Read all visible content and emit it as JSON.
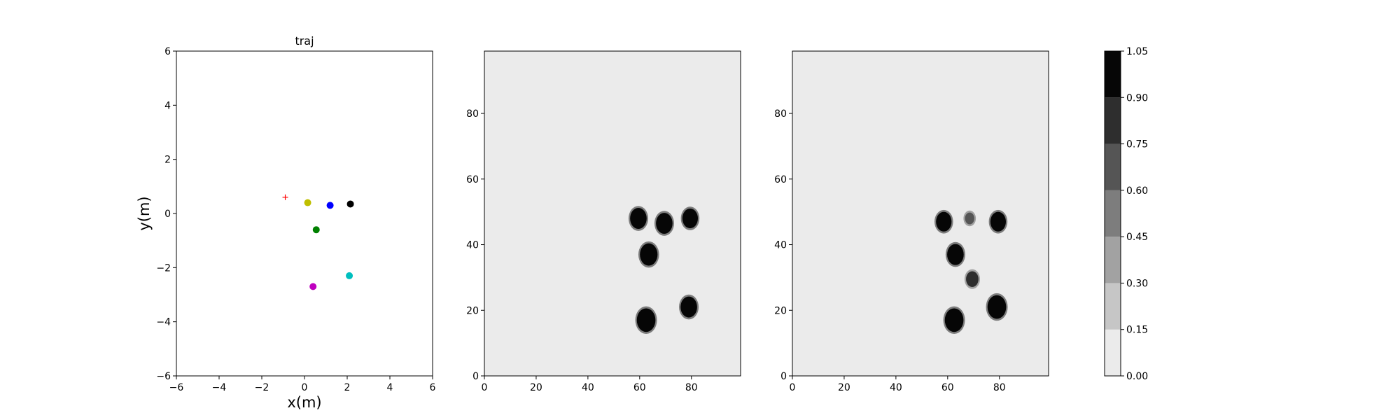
{
  "chart_data": [
    {
      "type": "scatter",
      "title": "traj",
      "xlabel": "x(m)",
      "ylabel": "y(m)",
      "xlim": [
        -6,
        6
      ],
      "ylim": [
        -6,
        6
      ],
      "xticks": [
        "−6",
        "−4",
        "−2",
        "0",
        "2",
        "4",
        "6"
      ],
      "yticks": [
        "−6",
        "−4",
        "−2",
        "0",
        "2",
        "4",
        "6"
      ],
      "grid": false,
      "points": [
        {
          "x": 0.15,
          "y": 0.4,
          "color": "#bfbf00",
          "marker": "circle"
        },
        {
          "x": 1.2,
          "y": 0.3,
          "color": "#0000ff",
          "marker": "circle"
        },
        {
          "x": 2.15,
          "y": 0.35,
          "color": "#000000",
          "marker": "circle"
        },
        {
          "x": 0.55,
          "y": -0.6,
          "color": "#008000",
          "marker": "circle"
        },
        {
          "x": 2.1,
          "y": -2.3,
          "color": "#00bfbf",
          "marker": "circle"
        },
        {
          "x": 0.4,
          "y": -2.7,
          "color": "#bf00bf",
          "marker": "circle"
        }
      ],
      "target": {
        "x": -0.9,
        "y": 0.6,
        "color": "#ff0000",
        "marker": "plus"
      }
    },
    {
      "type": "heatmap",
      "xlim": [
        0,
        99
      ],
      "ylim": [
        0,
        99
      ],
      "xticks": [
        "0",
        "20",
        "40",
        "60",
        "80"
      ],
      "yticks": [
        "0",
        "20",
        "40",
        "60",
        "80"
      ],
      "background_value": 0.0,
      "blobs": [
        {
          "x": 59.5,
          "y": 48,
          "radius": 3.2,
          "value": 1.0
        },
        {
          "x": 69.5,
          "y": 46.5,
          "radius": 3.2,
          "value": 1.0
        },
        {
          "x": 79.5,
          "y": 48,
          "radius": 3.0,
          "value": 1.0
        },
        {
          "x": 63.5,
          "y": 37,
          "radius": 3.4,
          "value": 1.0
        },
        {
          "x": 62.5,
          "y": 17,
          "radius": 3.6,
          "value": 1.0
        },
        {
          "x": 79,
          "y": 21,
          "radius": 3.2,
          "value": 1.0
        }
      ]
    },
    {
      "type": "heatmap",
      "xlim": [
        0,
        99
      ],
      "ylim": [
        0,
        99
      ],
      "xticks": [
        "0",
        "20",
        "40",
        "60",
        "80"
      ],
      "yticks": [
        "0",
        "20",
        "40",
        "60",
        "80"
      ],
      "background_value": 0.0,
      "blobs": [
        {
          "x": 58.5,
          "y": 47,
          "radius": 3.0,
          "value": 1.0
        },
        {
          "x": 68.5,
          "y": 48,
          "radius": 1.8,
          "value": 0.7
        },
        {
          "x": 79.5,
          "y": 47,
          "radius": 3.0,
          "value": 1.0
        },
        {
          "x": 63,
          "y": 37,
          "radius": 3.2,
          "value": 1.0
        },
        {
          "x": 69.5,
          "y": 29.5,
          "radius": 2.4,
          "value": 0.9
        },
        {
          "x": 62.5,
          "y": 17,
          "radius": 3.6,
          "value": 1.0
        },
        {
          "x": 79,
          "y": 21,
          "radius": 3.6,
          "value": 1.0
        }
      ]
    }
  ],
  "colorbar": {
    "ticks": [
      "0.00",
      "0.15",
      "0.30",
      "0.45",
      "0.60",
      "0.75",
      "0.90",
      "1.05"
    ],
    "levels": [
      0,
      0.15,
      0.3,
      0.45,
      0.6,
      0.75,
      0.9,
      1.05
    ],
    "colors": [
      "#ebebeb",
      "#c6c6c6",
      "#a2a2a2",
      "#7d7d7d",
      "#555555",
      "#2e2e2e",
      "#060606"
    ]
  }
}
